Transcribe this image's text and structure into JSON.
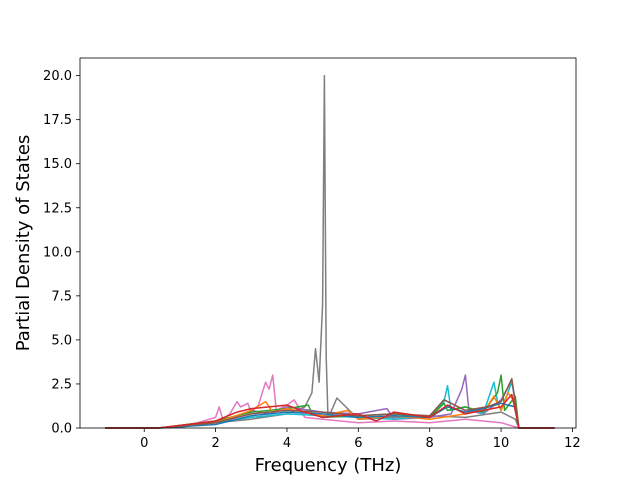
{
  "chart_data": {
    "type": "line",
    "title": "",
    "xlabel": "Frequency (THz)",
    "ylabel": "Partial Density of States",
    "xlim": [
      -1.8,
      12.1
    ],
    "ylim": [
      0,
      21
    ],
    "xticks": [
      0,
      2,
      4,
      6,
      8,
      10,
      12
    ],
    "yticks": [
      0.0,
      2.5,
      5.0,
      7.5,
      10.0,
      12.5,
      15.0,
      17.5,
      20.0
    ],
    "xtick_labels": [
      "0",
      "2",
      "4",
      "6",
      "8",
      "10",
      "12"
    ],
    "ytick_labels": [
      "0.0",
      "2.5",
      "5.0",
      "7.5",
      "10.0",
      "12.5",
      "15.0",
      "17.5",
      "20.0"
    ],
    "grid": false,
    "legend": "none",
    "series": [
      {
        "color": "#7f7f7f",
        "x": [
          -1.1,
          0.4,
          1.0,
          2.0,
          3.0,
          4.0,
          4.5,
          4.7,
          4.8,
          4.9,
          5.0,
          5.05,
          5.1,
          5.15,
          5.25,
          5.4,
          5.6,
          6.0,
          7.0,
          8.0,
          9.0,
          10.0,
          10.4,
          10.5,
          11.5
        ],
        "y": [
          0,
          0,
          0.05,
          0.3,
          0.5,
          0.8,
          1.2,
          2.0,
          4.5,
          2.6,
          7.0,
          20.0,
          4.0,
          0.6,
          1.0,
          1.7,
          1.3,
          0.5,
          0.6,
          0.7,
          0.6,
          0.9,
          0.5,
          0,
          0
        ]
      },
      {
        "color": "#e377c2",
        "x": [
          -1.1,
          0.4,
          1.0,
          1.5,
          2.0,
          2.1,
          2.2,
          2.4,
          2.6,
          2.7,
          2.9,
          3.0,
          3.2,
          3.4,
          3.5,
          3.6,
          3.7,
          4.0,
          4.2,
          4.5,
          5.0,
          6.0,
          7.0,
          8.0,
          9.0,
          10.0,
          10.5,
          11.5
        ],
        "y": [
          0,
          0,
          0.1,
          0.3,
          0.6,
          1.2,
          0.5,
          0.8,
          1.5,
          1.2,
          1.4,
          0.9,
          1.3,
          2.6,
          2.2,
          3.0,
          1.0,
          1.3,
          1.6,
          0.6,
          0.5,
          0.3,
          0.4,
          0.3,
          0.5,
          0.3,
          0,
          0
        ]
      },
      {
        "color": "#9467bd",
        "x": [
          -1.1,
          0.4,
          1.5,
          2.0,
          2.5,
          3.0,
          3.5,
          4.0,
          5.0,
          6.0,
          6.8,
          7.0,
          8.0,
          8.6,
          8.9,
          9.0,
          9.1,
          9.5,
          10.0,
          10.3,
          10.5,
          11.5
        ],
        "y": [
          0,
          0,
          0.2,
          0.4,
          0.6,
          1.0,
          0.8,
          1.2,
          0.9,
          0.8,
          1.1,
          0.5,
          0.6,
          0.8,
          2.2,
          3.0,
          1.0,
          0.8,
          1.6,
          2.7,
          0,
          0
        ]
      },
      {
        "color": "#17becf",
        "x": [
          -1.1,
          0.4,
          2.0,
          3.0,
          4.0,
          5.0,
          6.0,
          7.0,
          8.0,
          8.4,
          8.5,
          8.6,
          9.0,
          9.5,
          9.8,
          9.9,
          10.0,
          10.3,
          10.4,
          10.5,
          11.5
        ],
        "y": [
          0,
          0,
          0.3,
          0.6,
          0.8,
          0.7,
          0.6,
          0.5,
          0.7,
          1.5,
          2.4,
          1.0,
          1.2,
          0.8,
          2.6,
          1.5,
          1.0,
          2.6,
          1.6,
          0,
          0
        ]
      },
      {
        "color": "#2ca02c",
        "x": [
          -1.1,
          0.4,
          2.0,
          3.0,
          4.0,
          4.6,
          4.7,
          5.0,
          6.0,
          7.0,
          8.0,
          8.4,
          8.5,
          9.0,
          9.5,
          9.9,
          10.0,
          10.1,
          10.4,
          10.5,
          11.5
        ],
        "y": [
          0,
          0,
          0.4,
          0.9,
          1.1,
          1.3,
          0.8,
          0.6,
          0.7,
          0.8,
          0.6,
          1.4,
          1.0,
          1.2,
          0.9,
          2.0,
          3.0,
          1.0,
          1.8,
          0,
          0
        ]
      },
      {
        "color": "#ff7f0e",
        "x": [
          -1.1,
          0.4,
          2.0,
          3.0,
          3.4,
          3.6,
          4.0,
          5.0,
          5.7,
          6.0,
          7.0,
          8.0,
          9.0,
          9.6,
          9.8,
          10.0,
          10.2,
          10.4,
          10.5,
          11.5
        ],
        "y": [
          0,
          0,
          0.3,
          1.0,
          1.5,
          0.9,
          1.1,
          0.7,
          1.0,
          0.5,
          0.7,
          0.5,
          0.8,
          1.2,
          1.8,
          1.0,
          2.0,
          1.4,
          0,
          0
        ]
      },
      {
        "color": "#1f77b4",
        "x": [
          -1.1,
          0.4,
          2.0,
          3.0,
          4.0,
          5.0,
          6.0,
          7.0,
          8.0,
          8.5,
          9.0,
          9.5,
          10.0,
          10.4,
          10.5,
          11.5
        ],
        "y": [
          0,
          0,
          0.2,
          0.7,
          0.9,
          0.8,
          0.6,
          0.7,
          0.6,
          1.2,
          0.9,
          1.1,
          1.4,
          1.2,
          0,
          0
        ]
      },
      {
        "color": "#8c564b",
        "x": [
          -1.1,
          0.4,
          2.0,
          3.0,
          4.0,
          5.0,
          6.0,
          7.0,
          8.0,
          8.4,
          9.0,
          9.6,
          10.0,
          10.3,
          10.5,
          11.5
        ],
        "y": [
          0,
          0,
          0.3,
          0.8,
          1.0,
          0.9,
          0.7,
          0.8,
          0.7,
          1.6,
          1.0,
          1.2,
          1.5,
          2.8,
          0,
          0
        ]
      },
      {
        "color": "#d62728",
        "x": [
          -1.1,
          0.4,
          2.0,
          2.6,
          3.0,
          4.0,
          4.5,
          5.0,
          6.0,
          6.5,
          7.0,
          8.0,
          8.5,
          9.0,
          9.5,
          10.0,
          10.3,
          10.5,
          11.5
        ],
        "y": [
          0,
          0,
          0.4,
          0.9,
          1.1,
          1.3,
          0.9,
          0.6,
          0.8,
          0.4,
          0.9,
          0.6,
          1.3,
          0.8,
          1.0,
          1.2,
          1.9,
          0,
          0
        ]
      }
    ]
  }
}
